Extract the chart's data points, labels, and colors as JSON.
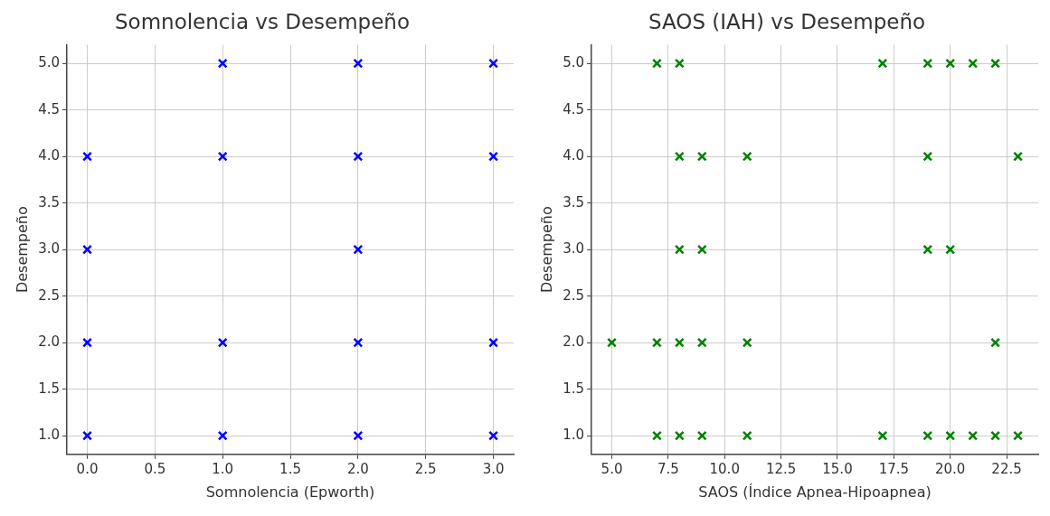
{
  "chart_data": [
    {
      "type": "scatter",
      "title": "Somnolencia vs Desempeño",
      "xlabel": "Somnolencia (Epworth)",
      "ylabel": "Desempeño",
      "marker": "cross",
      "grid": true,
      "xlim": [
        -0.15,
        3.15
      ],
      "xticks": [
        {
          "value": 0,
          "label": "0.0"
        },
        {
          "value": 0.5,
          "label": "0.5"
        },
        {
          "value": 1,
          "label": "1.0"
        },
        {
          "value": 1.5,
          "label": "1.5"
        },
        {
          "value": 2,
          "label": "2.0"
        },
        {
          "value": 2.5,
          "label": "2.5"
        },
        {
          "value": 3,
          "label": "3.0"
        }
      ],
      "ylim": [
        0.8,
        5.2
      ],
      "yticks": [
        {
          "value": 1,
          "label": "1.0"
        },
        {
          "value": 1.5,
          "label": "1.5"
        },
        {
          "value": 2,
          "label": "2.0"
        },
        {
          "value": 2.5,
          "label": "2.5"
        },
        {
          "value": 3,
          "label": "3.0"
        },
        {
          "value": 3.5,
          "label": "3.5"
        },
        {
          "value": 4,
          "label": "4.0"
        },
        {
          "value": 4.5,
          "label": "4.5"
        },
        {
          "value": 5,
          "label": "5.0"
        }
      ],
      "series": [
        {
          "color": "#0000ff",
          "x": [
            0,
            0,
            0,
            0,
            1,
            1,
            1,
            1,
            2,
            2,
            2,
            2,
            2,
            3,
            3,
            3,
            3
          ],
          "values": [
            1,
            2,
            3,
            4,
            5,
            4,
            2,
            1,
            5,
            4,
            3,
            2,
            1,
            5,
            4,
            2,
            1
          ]
        }
      ]
    },
    {
      "type": "scatter",
      "title": "SAOS (IAH) vs Desempeño",
      "xlabel": "SAOS (Índice Apnea-Hipoapnea)",
      "ylabel": "Desempeño",
      "marker": "cross",
      "grid": true,
      "xlim": [
        4.1,
        23.9
      ],
      "xticks": [
        {
          "value": 5,
          "label": "5.0"
        },
        {
          "value": 7.5,
          "label": "7.5"
        },
        {
          "value": 10,
          "label": "10.0"
        },
        {
          "value": 12.5,
          "label": "12.5"
        },
        {
          "value": 15,
          "label": "15.0"
        },
        {
          "value": 17.5,
          "label": "17.5"
        },
        {
          "value": 20,
          "label": "20.0"
        },
        {
          "value": 22.5,
          "label": "22.5"
        }
      ],
      "ylim": [
        0.8,
        5.2
      ],
      "yticks": [
        {
          "value": 1,
          "label": "1.0"
        },
        {
          "value": 1.5,
          "label": "1.5"
        },
        {
          "value": 2,
          "label": "2.0"
        },
        {
          "value": 2.5,
          "label": "2.5"
        },
        {
          "value": 3,
          "label": "3.0"
        },
        {
          "value": 3.5,
          "label": "3.5"
        },
        {
          "value": 4,
          "label": "4.0"
        },
        {
          "value": 4.5,
          "label": "4.5"
        },
        {
          "value": 5,
          "label": "5.0"
        }
      ],
      "series": [
        {
          "color": "#008000",
          "x": [
            7,
            8,
            17,
            19,
            20,
            21,
            22,
            8,
            9,
            11,
            19,
            23,
            8,
            9,
            19,
            20,
            5,
            7,
            8,
            9,
            11,
            22,
            7,
            8,
            9,
            11,
            17,
            19,
            20,
            21,
            22,
            23
          ],
          "values": [
            5,
            5,
            5,
            5,
            5,
            5,
            5,
            4,
            4,
            4,
            4,
            4,
            3,
            3,
            3,
            3,
            2,
            2,
            2,
            2,
            2,
            2,
            1,
            1,
            1,
            1,
            1,
            1,
            1,
            1,
            1,
            1
          ]
        }
      ]
    }
  ]
}
